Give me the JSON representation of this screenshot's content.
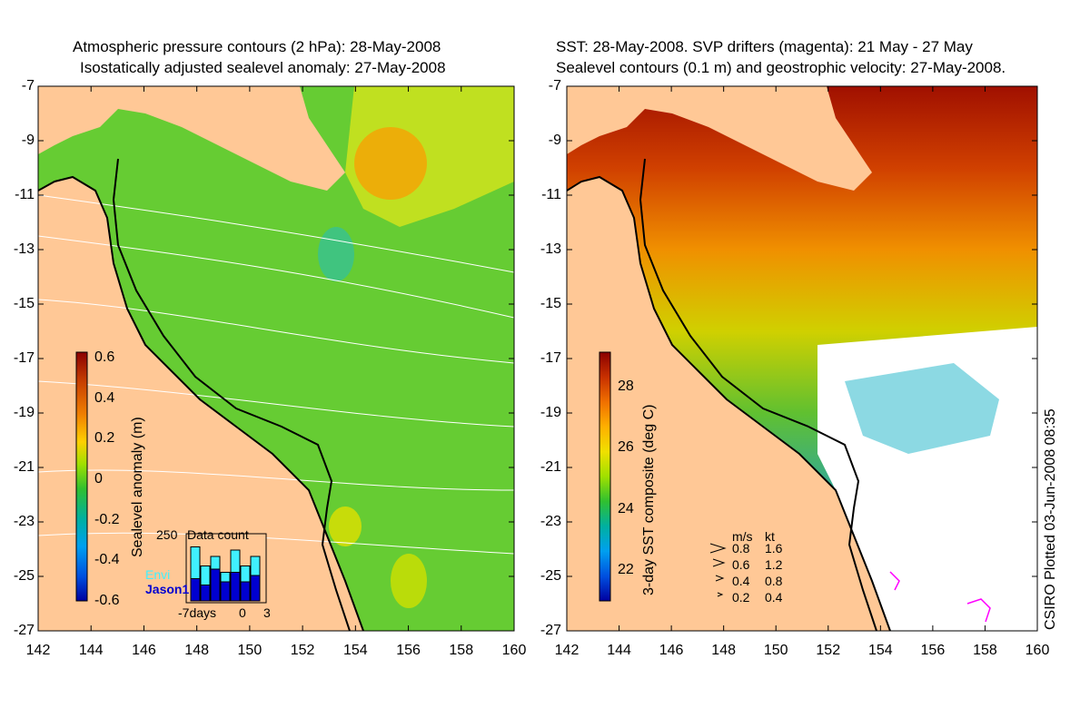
{
  "left_panel": {
    "title_line1": "Atmospheric pressure contours (2 hPa): 28-May-2008",
    "title_line2": "Isostatically adjusted sealevel anomaly: 27-May-2008",
    "colorbar": {
      "label": "Sealevel anomaly (m)",
      "ticks": [
        "0.6",
        "0.4",
        "0.2",
        "0",
        "-0.2",
        "-0.4",
        "-0.6"
      ],
      "colors": [
        "#8b0000",
        "#c84000",
        "#f08000",
        "#ffd000",
        "#a0e000",
        "#30c030",
        "#00b0a0",
        "#00a0f0",
        "#0050e0",
        "#0000a0"
      ]
    },
    "inset": {
      "title": "Data count",
      "ymax_label": "250",
      "xticks": [
        "-7days",
        "0",
        "3"
      ],
      "legend_envi": "Envi",
      "legend_jason": "Jason1",
      "envi_color": "#40f0ff",
      "jason_color": "#0000d0",
      "envi_counts": [
        0.85,
        0.55,
        0.7,
        0.45,
        0.8,
        0.55,
        0.7
      ],
      "jason_counts": [
        0.35,
        0.25,
        0.5,
        0.3,
        0.45,
        0.3,
        0.4
      ]
    }
  },
  "right_panel": {
    "title_line1": "SST: 28-May-2008. SVP drifters (magenta): 21 May - 27 May",
    "title_line2": "Sealevel contours (0.1 m) and geostrophic velocity: 27-May-2008.",
    "colorbar": {
      "label": "3-day SST composite (deg C)",
      "ticks": [
        "28",
        "26",
        "24",
        "22"
      ],
      "colors": [
        "#8b0000",
        "#c83000",
        "#f07000",
        "#ffb000",
        "#f0e000",
        "#a0e000",
        "#30c030",
        "#00b0a0",
        "#00a0f0",
        "#0050e0",
        "#0000a0"
      ]
    },
    "velocity_legend": {
      "header_ms": "m/s",
      "header_kt": "kt",
      "rows": [
        {
          "ms": "0.8",
          "kt": "1.6"
        },
        {
          "ms": "0.6",
          "kt": "1.2"
        },
        {
          "ms": "0.4",
          "kt": "0.8"
        },
        {
          "ms": "0.2",
          "kt": "0.4"
        }
      ]
    },
    "credit": "CSIRO Plotted 03-Jun-2008 08:35"
  },
  "axes": {
    "y_ticks": [
      "-7",
      "-9",
      "-11",
      "-13",
      "-15",
      "-17",
      "-19",
      "-21",
      "-23",
      "-25",
      "-27"
    ],
    "x_ticks": [
      "142",
      "144",
      "146",
      "148",
      "150",
      "152",
      "154",
      "156",
      "158",
      "160"
    ],
    "lat_range": [
      -27,
      -7
    ],
    "lon_range": [
      142,
      160
    ]
  },
  "colors": {
    "land": "#ffc896",
    "sea_left": "#66cc33",
    "sea_right": "#ffffff",
    "coast": "#000000",
    "contour": "#ffffff",
    "drifter": "#ff00ff"
  }
}
